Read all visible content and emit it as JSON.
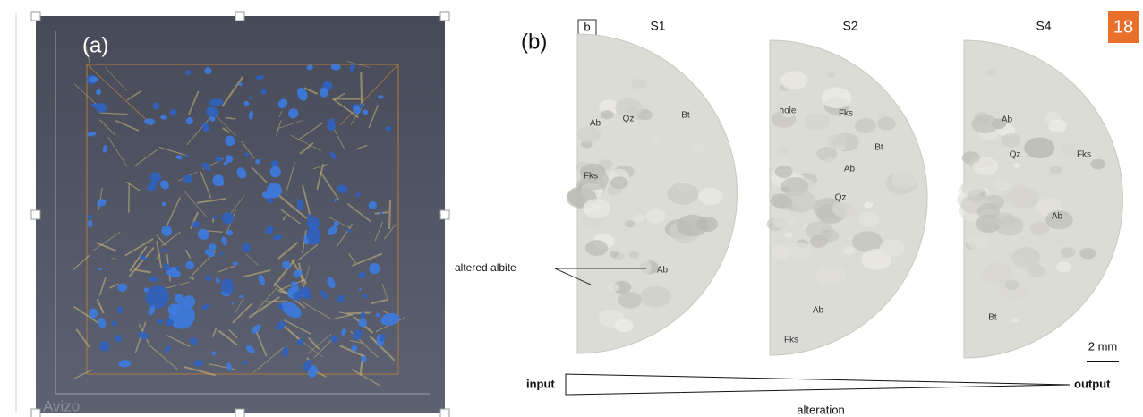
{
  "slide_number": "18",
  "panel_a": {
    "label": "(a)",
    "watermark": "Avizo"
  },
  "panel_b": {
    "label": "(b)",
    "inset_label": "b",
    "samples": [
      {
        "name": "S1",
        "minerals": [
          "Ab",
          "Qz",
          "Bt",
          "Fks",
          "Ab"
        ]
      },
      {
        "name": "S2",
        "minerals": [
          "hole",
          "Fks",
          "Bt",
          "Ab",
          "Qz",
          "Ab",
          "Fks"
        ]
      },
      {
        "name": "S4",
        "minerals": [
          "Ab",
          "Qz",
          "Fks",
          "Ab",
          "Bt"
        ]
      }
    ],
    "annotation": "altered albite",
    "scale_bar": "2 mm",
    "gradient": {
      "start": "input",
      "end": "output",
      "caption": "alteration"
    }
  }
}
